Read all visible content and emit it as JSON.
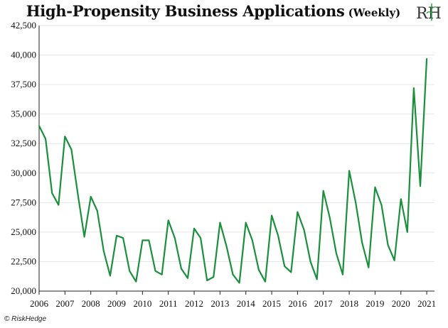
{
  "title": "High-Propensity Business Applications",
  "title_suffix": "(Weekly)",
  "logo_text": "RH",
  "footer": "© RiskHedge",
  "colors": {
    "line": "#1a8f3c",
    "axis": "#222222",
    "grid": "#e6e6e6",
    "logo_accent": "#2a9d4b"
  },
  "chart_data": {
    "type": "line",
    "title": "High-Propensity Business Applications (Weekly)",
    "xlabel": "",
    "ylabel": "",
    "xlim": [
      2006,
      2021.3
    ],
    "ylim": [
      20000,
      42500
    ],
    "xticks": [
      2006,
      2007,
      2008,
      2009,
      2010,
      2011,
      2012,
      2013,
      2014,
      2015,
      2016,
      2017,
      2018,
      2019,
      2020,
      2021
    ],
    "yticks": [
      20000,
      22500,
      25000,
      27500,
      30000,
      32500,
      35000,
      37500,
      40000,
      42500
    ],
    "grid": true,
    "legend": "none",
    "series": [
      {
        "x": [
          2006.0,
          2006.25,
          2006.5,
          2006.75,
          2007.0,
          2007.25,
          2007.5,
          2007.75,
          2008.0,
          2008.25,
          2008.5,
          2008.75,
          2009.0,
          2009.25,
          2009.5,
          2009.75,
          2010.0,
          2010.25,
          2010.5,
          2010.75,
          2011.0,
          2011.25,
          2011.5,
          2011.75,
          2012.0,
          2012.25,
          2012.5,
          2012.75,
          2013.0,
          2013.25,
          2013.5,
          2013.75,
          2014.0,
          2014.25,
          2014.5,
          2014.75,
          2015.0,
          2015.25,
          2015.5,
          2015.75,
          2016.0,
          2016.25,
          2016.5,
          2016.75,
          2017.0,
          2017.25,
          2017.5,
          2017.75,
          2018.0,
          2018.25,
          2018.5,
          2018.75,
          2019.0,
          2019.25,
          2019.5,
          2019.75,
          2020.0,
          2020.25,
          2020.5,
          2020.75,
          2021.0
        ],
        "values": [
          34000,
          32900,
          28300,
          27300,
          33100,
          32000,
          28200,
          24600,
          28000,
          26800,
          23400,
          21300,
          24700,
          24500,
          21700,
          20800,
          24300,
          24300,
          21700,
          21400,
          26000,
          24500,
          21900,
          21100,
          25300,
          24500,
          20900,
          21200,
          25800,
          23800,
          21400,
          20700,
          25800,
          24300,
          21800,
          20800,
          26400,
          24700,
          22100,
          21600,
          26700,
          25200,
          22500,
          21000,
          28500,
          26200,
          23200,
          21400,
          30200,
          27500,
          24100,
          22000,
          28800,
          27300,
          23900,
          22600,
          27800,
          25000,
          37200,
          28900,
          39700
        ]
      }
    ]
  }
}
